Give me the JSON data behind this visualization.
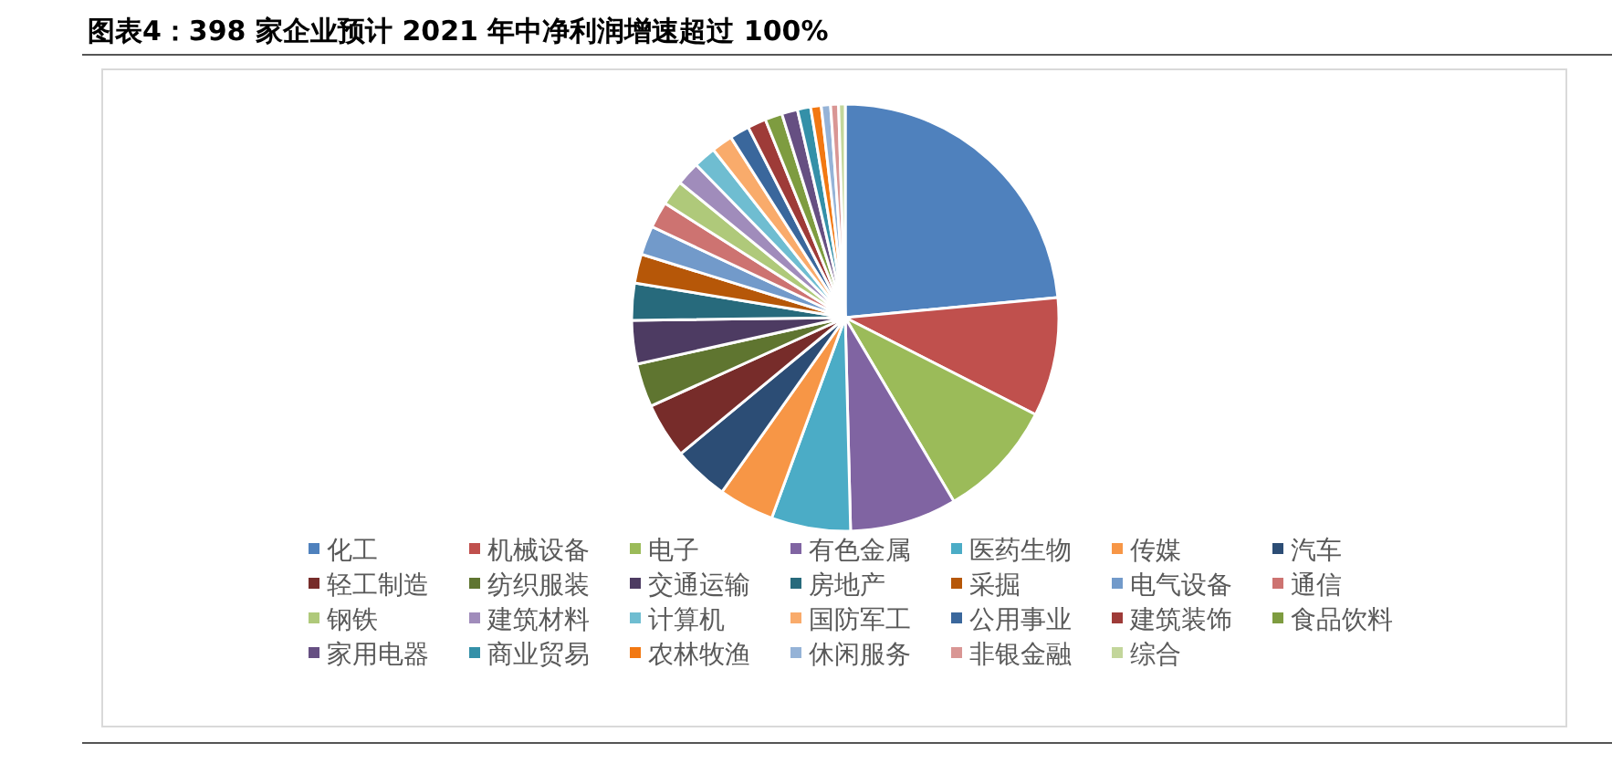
{
  "chart_data": {
    "type": "pie",
    "title": "图表4：398 家企业预计 2021 年中净利润增速超过 100%",
    "categories": [
      "化工",
      "机械设备",
      "电子",
      "有色金属",
      "医药生物",
      "传媒",
      "汽车",
      "轻工制造",
      "纺织服装",
      "交通运输",
      "房地产",
      "采掘",
      "电气设备",
      "通信",
      "钢铁",
      "建筑材料",
      "计算机",
      "国防军工",
      "公用事业",
      "建筑装饰",
      "食品饮料",
      "家用电器",
      "商业贸易",
      "农林牧渔",
      "休闲服务",
      "非银金融",
      "综合"
    ],
    "values": [
      23.5,
      9.0,
      9.0,
      8.1,
      6.0,
      4.2,
      4.2,
      4.2,
      3.3,
      3.3,
      2.8,
      2.2,
      2.2,
      2.0,
      1.9,
      1.8,
      1.7,
      1.6,
      1.5,
      1.4,
      1.3,
      1.2,
      1.0,
      0.8,
      0.7,
      0.6,
      0.5
    ],
    "colors": [
      "#4f81bd",
      "#c0504d",
      "#9bbb59",
      "#8064a2",
      "#4bacc6",
      "#f79646",
      "#2c4d75",
      "#772c2a",
      "#5f7530",
      "#4d3b62",
      "#276a7c",
      "#b65708",
      "#729aca",
      "#cd7371",
      "#afc97a",
      "#a08cbb",
      "#6fbdd1",
      "#f9ab6b",
      "#3a679c",
      "#9e3b38",
      "#7e9c40",
      "#664f82",
      "#3490a8",
      "#f27812",
      "#95b3d7",
      "#d99694",
      "#c3d69b"
    ],
    "legend": "bottom"
  }
}
